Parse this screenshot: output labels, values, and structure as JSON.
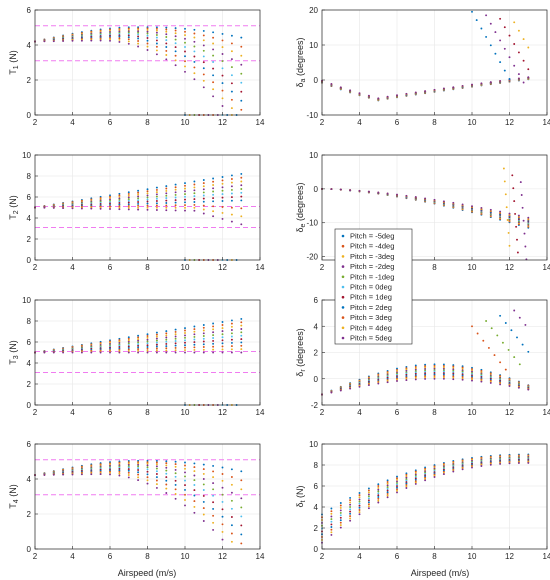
{
  "figure": {
    "xlabel": "Airspeed (m/s)"
  },
  "legend": {
    "entries": [
      "Pitch = -5deg",
      "Pitch = -4deg",
      "Pitch = -3deg",
      "Pitch = -2deg",
      "Pitch = -1deg",
      "Pitch = 0deg",
      "Pitch = 1deg",
      "Pitch = 2deg",
      "Pitch = 3deg",
      "Pitch = 4deg",
      "Pitch = 5deg"
    ],
    "colors": [
      "#0072BD",
      "#D95319",
      "#EDB120",
      "#7E2F8E",
      "#77AC30",
      "#4DBEEE",
      "#A2142F",
      "#0072BD",
      "#D95319",
      "#EDB120",
      "#7E2F8E"
    ]
  },
  "chart_data": [
    {
      "type": "scatter",
      "id": "T1",
      "ylabel_main": "T",
      "ylabel_sub": "1",
      "ylabel_unit": " (N)",
      "xlim": [
        2,
        14
      ],
      "ylim": [
        0,
        6
      ],
      "xticks": [
        2,
        4,
        6,
        8,
        10,
        12,
        14
      ],
      "yticks": [
        0,
        2,
        4,
        6
      ],
      "hlines": [
        5.1,
        3.1
      ],
      "grid": true,
      "x": [
        2.0,
        2.5,
        3.0,
        3.5,
        4.0,
        4.5,
        5.0,
        5.5,
        6.0,
        6.5,
        7.0,
        7.5,
        8.0,
        8.5,
        9.0,
        9.5,
        10.0,
        10.5,
        11.0,
        11.5,
        12.0,
        12.5,
        13.0
      ],
      "series_ranges": {
        "Pitch = -5deg": [
          4.2,
          4.5,
          4.7,
          4.85,
          4.95,
          5.0,
          5.02,
          5.0,
          4.95,
          4.85,
          4.4
        ],
        "Pitch = 5deg": [
          4.2,
          4.3,
          4.3,
          4.25,
          4.1,
          3.85,
          3.5,
          3.0,
          2.3,
          1.4,
          0.0
        ]
      }
    },
    {
      "type": "scatter",
      "id": "T2",
      "ylabel_main": "T",
      "ylabel_sub": "2",
      "ylabel_unit": " (N)",
      "xlim": [
        2,
        14
      ],
      "ylim": [
        0,
        10
      ],
      "xticks": [
        2,
        4,
        6,
        8,
        10,
        12,
        14
      ],
      "yticks": [
        0,
        2,
        4,
        6,
        8,
        10
      ],
      "hlines": [
        5.1,
        3.1
      ],
      "grid": true,
      "x": [
        2.0,
        2.5,
        3.0,
        3.5,
        4.0,
        4.5,
        5.0,
        5.5,
        6.0,
        6.5,
        7.0,
        7.5,
        8.0,
        8.5,
        9.0,
        9.5,
        10.0,
        10.5,
        11.0,
        11.5,
        12.0,
        12.5,
        13.0
      ],
      "series_ranges": {
        "Pitch = -5deg": [
          5.0,
          8.2
        ],
        "Pitch = 5deg": [
          5.0,
          4.6
        ]
      }
    },
    {
      "type": "scatter",
      "id": "T3",
      "ylabel_main": "T",
      "ylabel_sub": "3",
      "ylabel_unit": " (N)",
      "xlim": [
        2,
        14
      ],
      "ylim": [
        0,
        10
      ],
      "xticks": [
        2,
        4,
        6,
        8,
        10,
        12,
        14
      ],
      "yticks": [
        0,
        2,
        4,
        6,
        8,
        10
      ],
      "hlines": [
        5.1,
        3.1
      ],
      "grid": true,
      "x": [
        2.0,
        2.5,
        3.0,
        3.5,
        4.0,
        4.5,
        5.0,
        5.5,
        6.0,
        6.5,
        7.0,
        7.5,
        8.0,
        8.5,
        9.0,
        9.5,
        10.0,
        10.5,
        11.0,
        11.5,
        12.0,
        12.5,
        13.0
      ],
      "series_ranges": {
        "Pitch = -5deg": [
          5.0,
          8.2
        ],
        "Pitch = 5deg": [
          5.0,
          5.0
        ]
      }
    },
    {
      "type": "scatter",
      "id": "T4",
      "ylabel_main": "T",
      "ylabel_sub": "4",
      "ylabel_unit": " (N)",
      "xlim": [
        2,
        14
      ],
      "ylim": [
        0,
        6
      ],
      "xticks": [
        2,
        4,
        6,
        8,
        10,
        12,
        14
      ],
      "yticks": [
        0,
        2,
        4,
        6
      ],
      "hlines": [
        5.1,
        3.1
      ],
      "grid": true,
      "x": [
        2.0,
        2.5,
        3.0,
        3.5,
        4.0,
        4.5,
        5.0,
        5.5,
        6.0,
        6.5,
        7.0,
        7.5,
        8.0,
        8.5,
        9.0,
        9.5,
        10.0,
        10.5,
        11.0,
        11.5,
        12.0,
        12.5,
        13.0
      ],
      "series_ranges": {
        "Pitch = -5deg": [
          4.2,
          5.0,
          4.4
        ],
        "Pitch = 5deg": [
          4.2,
          4.3,
          0.0
        ]
      }
    },
    {
      "type": "scatter",
      "id": "da",
      "ylabel_main": "δ",
      "ylabel_sub": "a",
      "ylabel_unit": " (degrees)",
      "xlim": [
        2,
        14
      ],
      "ylim": [
        -10,
        20
      ],
      "xticks": [
        2,
        4,
        6,
        8,
        10,
        12,
        14
      ],
      "yticks": [
        -10,
        0,
        10,
        20
      ],
      "hlines": [],
      "grid": true,
      "x": [
        2.0,
        2.5,
        3.0,
        3.5,
        4.0,
        4.5,
        5.0,
        5.5,
        6.0,
        6.5,
        7.0,
        7.5,
        8.0,
        8.5,
        9.0,
        9.5,
        10.0,
        10.5,
        11.0,
        11.5,
        12.0,
        12.5,
        13.0
      ],
      "series_ranges": {
        "all": [
          -0.5,
          -6.0,
          0.5
        ],
        "high_branch": [
          20.0,
          0.0
        ]
      }
    },
    {
      "type": "scatter",
      "id": "de",
      "ylabel_main": "δ",
      "ylabel_sub": "e",
      "ylabel_unit": " (degrees)",
      "xlim": [
        2,
        14
      ],
      "ylim": [
        -21,
        10
      ],
      "xticks": [
        2,
        4,
        6,
        8,
        10,
        12,
        14
      ],
      "yticks": [
        -20,
        -10,
        0,
        10
      ],
      "hlines": [],
      "grid": true,
      "x": [
        2.0,
        2.5,
        3.0,
        3.5,
        4.0,
        4.5,
        5.0,
        5.5,
        6.0,
        6.5,
        7.0,
        7.5,
        8.0,
        8.5,
        9.0,
        9.5,
        10.0,
        10.5,
        11.0,
        11.5,
        12.0,
        12.5,
        13.0
      ],
      "series_ranges": {
        "all": [
          0.0,
          -10.0
        ],
        "high_branch": [
          6.0,
          -20.0
        ]
      }
    },
    {
      "type": "scatter",
      "id": "dr",
      "ylabel_main": "δ",
      "ylabel_sub": "r",
      "ylabel_unit": " (degrees)",
      "xlim": [
        2,
        14
      ],
      "ylim": [
        -2,
        6
      ],
      "xticks": [
        2,
        4,
        6,
        8,
        10,
        12,
        14
      ],
      "yticks": [
        -2,
        0,
        2,
        4,
        6
      ],
      "hlines": [],
      "grid": true,
      "x": [
        2.0,
        2.5,
        3.0,
        3.5,
        4.0,
        4.5,
        5.0,
        5.5,
        6.0,
        6.5,
        7.0,
        7.5,
        8.0,
        8.5,
        9.0,
        9.5,
        10.0,
        10.5,
        11.0,
        11.5,
        12.0,
        12.5,
        13.0
      ],
      "series_ranges": {
        "all": [
          -1.2,
          1.0,
          0.0
        ],
        "high_branch": [
          5.3,
          2.0
        ]
      }
    },
    {
      "type": "scatter",
      "id": "dt",
      "ylabel_main": "δ",
      "ylabel_sub": "t",
      "ylabel_unit": " (N)",
      "xlim": [
        2,
        14
      ],
      "ylim": [
        0,
        10
      ],
      "xticks": [
        2,
        4,
        6,
        8,
        10,
        12,
        14
      ],
      "yticks": [
        0,
        2,
        4,
        6,
        8,
        10
      ],
      "hlines": [],
      "grid": true,
      "x": [
        2.0,
        2.5,
        3.0,
        3.5,
        4.0,
        4.5,
        5.0,
        5.5,
        6.0,
        6.5,
        7.0,
        7.5,
        8.0,
        8.5,
        9.0,
        9.5,
        10.0,
        10.5,
        11.0,
        11.5,
        12.0,
        12.5,
        13.0
      ],
      "series_ranges": {
        "Pitch = -5deg": [
          3.3,
          9.0
        ],
        "Pitch = 5deg": [
          0.6,
          8.2
        ]
      }
    }
  ]
}
